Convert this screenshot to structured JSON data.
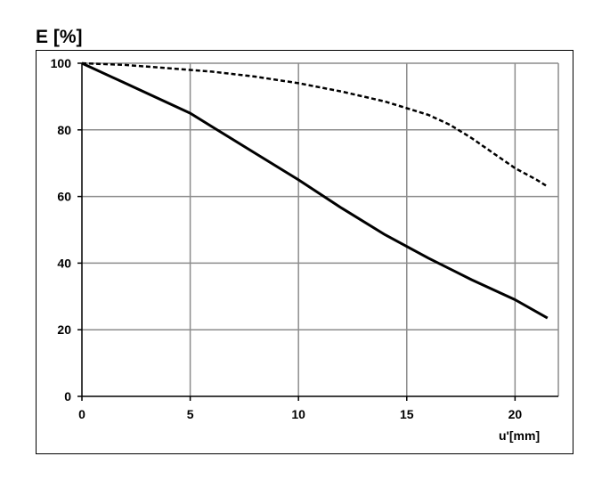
{
  "chart_data": {
    "type": "line",
    "ylabel": "E [%]",
    "xlabel": "u'[mm]",
    "xlim": [
      0,
      22
    ],
    "ylim": [
      0,
      100
    ],
    "xticks": [
      0,
      5,
      10,
      15,
      20
    ],
    "yticks": [
      0,
      20,
      40,
      60,
      80,
      100
    ],
    "grid": true,
    "series": [
      {
        "style": "solid",
        "color": "#000000",
        "x": [
          0,
          2,
          4,
          5,
          6,
          8,
          10,
          12,
          14,
          15,
          16,
          18,
          20,
          21.5
        ],
        "y": [
          100,
          94,
          88,
          85,
          81,
          73,
          65,
          56.5,
          48.5,
          45,
          41.5,
          35,
          29,
          23.5
        ]
      },
      {
        "style": "dashed",
        "color": "#000000",
        "x": [
          0,
          2,
          4,
          6,
          8,
          10,
          12,
          14,
          15,
          16,
          17,
          18,
          19,
          20,
          21,
          21.5
        ],
        "y": [
          100,
          99.5,
          98.5,
          97.5,
          96,
          94,
          91.5,
          88.5,
          86.5,
          84.5,
          81.5,
          77.5,
          73,
          68.5,
          65,
          63
        ]
      }
    ]
  }
}
